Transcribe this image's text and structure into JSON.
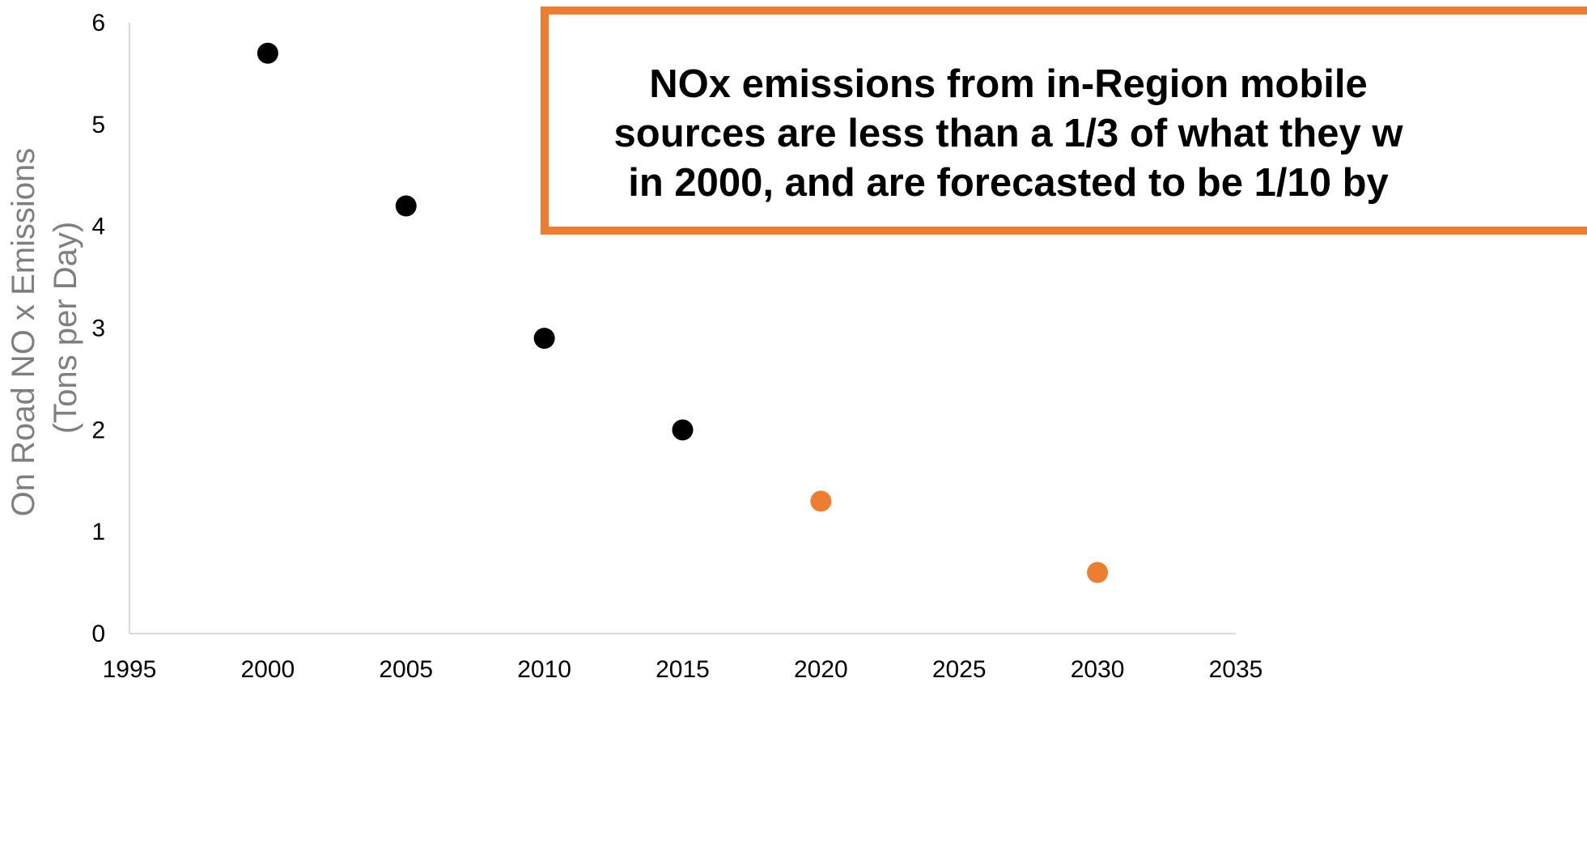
{
  "chart_data": {
    "type": "scatter",
    "title": "",
    "xlabel": "",
    "ylabel_lines": [
      "On Road NO x Emissions",
      "(Tons per Day)"
    ],
    "xlim": [
      1995,
      2035
    ],
    "ylim": [
      0,
      6
    ],
    "x_ticks": [
      "1995",
      "2000",
      "2005",
      "2010",
      "2015",
      "2020",
      "2025",
      "2030",
      "2035"
    ],
    "y_ticks": [
      "0",
      "1",
      "2",
      "3",
      "4",
      "5",
      "6"
    ],
    "grid": false,
    "legend": "none",
    "series": [
      {
        "color": "#000000",
        "points": [
          {
            "x": 2000,
            "y": 5.7
          },
          {
            "x": 2005,
            "y": 4.2
          },
          {
            "x": 2010,
            "y": 2.9
          },
          {
            "x": 2015,
            "y": 2.0
          }
        ]
      },
      {
        "color": "#ed7d31",
        "points": [
          {
            "x": 2020,
            "y": 1.3
          },
          {
            "x": 2030,
            "y": 0.6
          }
        ]
      }
    ],
    "annotation": {
      "text": "NOx emissions from in-Region mobile\nsources are less than a 1/3 of what they w\nin 2000, and are forecasted to be 1/10 by",
      "border_color": "#ed7d31"
    }
  }
}
